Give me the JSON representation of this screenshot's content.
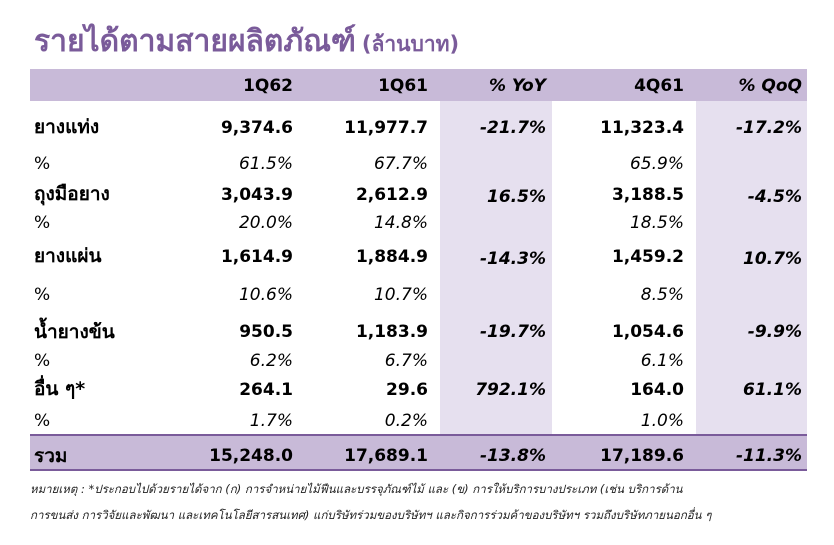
{
  "title": "รายได้ตามสายผลิตภัณฑ์",
  "title_unit": "(ล้านบาท)",
  "headers": [
    "1Q62",
    "1Q61",
    "% YoY",
    "4Q61",
    "% QoQ"
  ],
  "rows": [
    {
      "label": "ยางแท่ง",
      "q1_62": "9,374.6",
      "q1_61": "11,977.7",
      "yoy": "-21.7%",
      "q4_61": "11,323.4",
      "qoq": "-17.2%"
    },
    {
      "label": "%",
      "q1_62": "61.5%",
      "q1_61": "67.7%",
      "yoy": "",
      "q4_61": "65.9%",
      "qoq": ""
    },
    {
      "label": "ถุงมือยาง",
      "q1_62": "3,043.9",
      "q1_61": "2,612.9",
      "yoy": "16.5%",
      "q4_61": "3,188.5",
      "qoq": "-4.5%"
    },
    {
      "label": "%",
      "q1_62": "20.0%",
      "q1_61": "14.8%",
      "yoy": "",
      "q4_61": "18.5%",
      "qoq": ""
    },
    {
      "label": "ยางแผ่น",
      "q1_62": "1,614.9",
      "q1_61": "1,884.9",
      "yoy": "-14.3%",
      "q4_61": "1,459.2",
      "qoq": "10.7%"
    },
    {
      "label": "%",
      "q1_62": "10.6%",
      "q1_61": "10.7%",
      "yoy": "",
      "q4_61": "8.5%",
      "qoq": ""
    },
    {
      "label": "น้ำยางข้น",
      "q1_62": "950.5",
      "q1_61": "1,183.9",
      "yoy": "-19.7%",
      "q4_61": "1,054.6",
      "qoq": "-9.9%"
    },
    {
      "label": "%",
      "q1_62": "6.2%",
      "q1_61": "6.7%",
      "yoy": "",
      "q4_61": "6.1%",
      "qoq": ""
    },
    {
      "label": "อื่น ๆ*",
      "q1_62": "264.1",
      "q1_61": "29.6",
      "yoy": "792.1%",
      "q4_61": "164.0",
      "qoq": "61.1%"
    },
    {
      "label": "%",
      "q1_62": "1.7%",
      "q1_61": "0.2%",
      "yoy": "",
      "q4_61": "1.0%",
      "qoq": ""
    }
  ],
  "total": {
    "label": "รวม",
    "q1_62": "15,248.0",
    "q1_61": "17,689.1",
    "yoy": "-13.8%",
    "q4_61": "17,189.6",
    "qoq": "-11.3%"
  },
  "note_line1": "หมายเหตุ : *ประกอบไปด้วยรายได้จาก (ก) การจำหน่ายไม้ฟืนและบรรจุภัณฑ์ไม้ และ (ข) การให้บริการบางประเภท (เช่น บริการด้าน",
  "note_line2": "การขนส่ง การวิจัยและพัฒนา และเทคโนโลยีสารสนเทศ) แก่บริษัทร่วมของบริษัทฯ และกิจการร่วมค้าของบริษัทฯ รวมถึงบริษัทภายนอกอื่น ๆ"
}
